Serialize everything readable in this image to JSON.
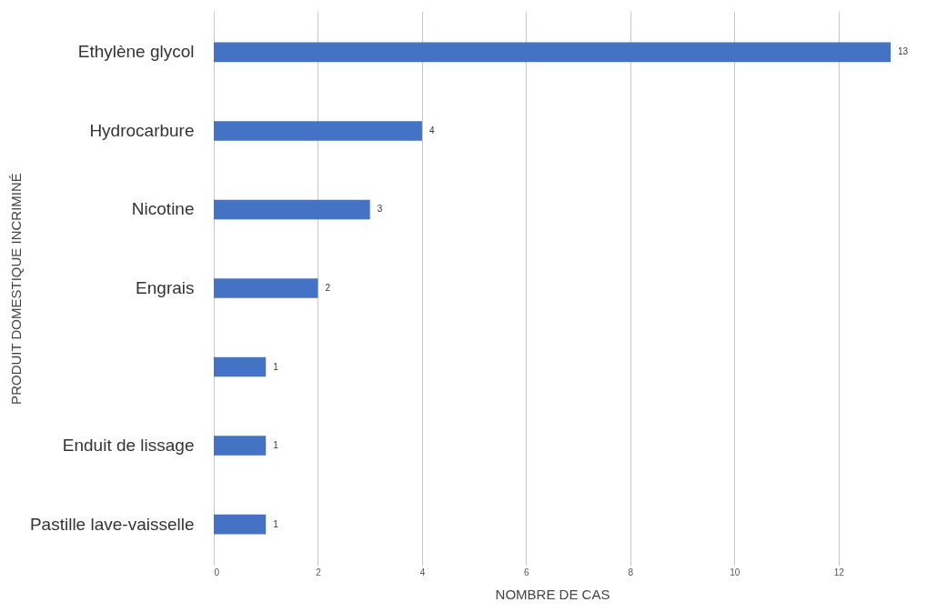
{
  "chart_data": {
    "type": "bar",
    "orientation": "horizontal",
    "xlabel": "NOMBRE DE CAS",
    "ylabel": "PRODUIT DOMESTIQUE INCRIMINÉ",
    "categories": [
      "Ethylène glycol",
      "Hydrocarbure",
      "Nicotine",
      "Engrais",
      null,
      "Enduit de lissage",
      "Pastille lave-vaisselle"
    ],
    "values": [
      13,
      4,
      3,
      2,
      1,
      1,
      1
    ],
    "color": "#4472c4",
    "xlim": [
      0,
      13
    ],
    "xticks": [
      0,
      2,
      4,
      6,
      8,
      10,
      12
    ],
    "grid": "x",
    "data_labels": true
  }
}
